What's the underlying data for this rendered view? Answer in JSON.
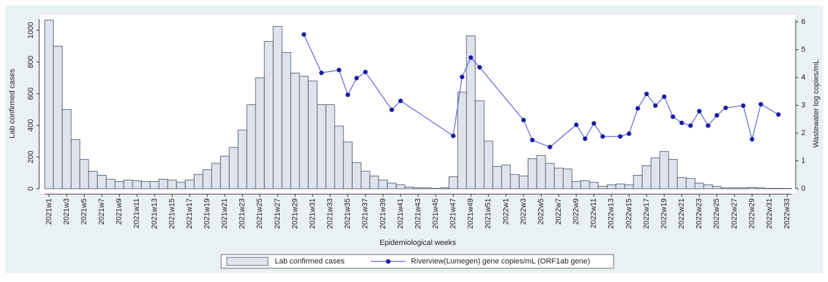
{
  "chart_data": {
    "type": "bar-line",
    "x_label": "Epidemiological weeks",
    "y_label": "Lab confirmed cases",
    "y2_label": "Wastewater log copies/mL",
    "categories": [
      "2021w1",
      null,
      "2021w3",
      null,
      "2021w5",
      null,
      "2021w7",
      null,
      "2021w9",
      null,
      "2021w11",
      null,
      "2021w13",
      null,
      "2021w15",
      null,
      "2021w17",
      null,
      "2021w19",
      null,
      "2021w21",
      null,
      "2021w23",
      null,
      "2021w25",
      null,
      "2021w27",
      null,
      "2021w29",
      null,
      "2021w31",
      null,
      "2021w33",
      null,
      "2021w35",
      null,
      "2021w37",
      null,
      "2021w39",
      null,
      "2021w41",
      null,
      "2021w43",
      null,
      "2021w45",
      null,
      "2021w47",
      null,
      "2021w49",
      null,
      "2021w51",
      null,
      "2022w1",
      null,
      "2022w3",
      null,
      "2022w5",
      null,
      "2022w7",
      null,
      "2022w9",
      null,
      "2022w11",
      null,
      "2022w13",
      null,
      "2022w15",
      null,
      "2022w17",
      null,
      "2022w19",
      null,
      "2022w21",
      null,
      "2022w23",
      null,
      "2022w25",
      null,
      "2022w27",
      null,
      "2022w29",
      null,
      "2022w31",
      null,
      "2022w33"
    ],
    "series": [
      {
        "name": "Lab confirmed cases",
        "type": "bar",
        "color": "#dfe4ec",
        "stroke": "#3d4a5e",
        "values": [
          1065,
          900,
          500,
          310,
          185,
          110,
          85,
          60,
          45,
          55,
          50,
          45,
          45,
          60,
          55,
          40,
          55,
          90,
          120,
          160,
          205,
          260,
          370,
          530,
          700,
          930,
          1025,
          860,
          730,
          710,
          680,
          530,
          530,
          395,
          295,
          165,
          110,
          80,
          55,
          35,
          25,
          10,
          5,
          5,
          2,
          5,
          75,
          610,
          965,
          555,
          300,
          140,
          150,
          90,
          80,
          190,
          210,
          160,
          130,
          125,
          45,
          50,
          40,
          15,
          25,
          30,
          25,
          85,
          145,
          195,
          235,
          185,
          70,
          65,
          35,
          25,
          15,
          5,
          5,
          5,
          8,
          5,
          2,
          2,
          2
        ]
      },
      {
        "name": "Riverview(Lumegen) gene copies/mL (ORF1ab gene)",
        "type": "line",
        "axis": "y2",
        "color": "#5b60d6",
        "marker_color": "#1c1ca6",
        "values": [
          null,
          null,
          null,
          null,
          null,
          null,
          null,
          null,
          null,
          null,
          null,
          null,
          null,
          null,
          null,
          null,
          null,
          null,
          null,
          null,
          null,
          null,
          null,
          null,
          null,
          null,
          null,
          null,
          null,
          5.55,
          null,
          4.17,
          null,
          4.27,
          3.38,
          3.98,
          4.2,
          null,
          null,
          2.84,
          3.16,
          null,
          null,
          null,
          null,
          null,
          1.9,
          4.02,
          4.72,
          4.37,
          null,
          null,
          null,
          null,
          2.47,
          1.75,
          null,
          1.5,
          null,
          null,
          2.3,
          1.8,
          2.35,
          1.88,
          null,
          1.88,
          1.98,
          2.89,
          3.41,
          2.99,
          3.31,
          2.59,
          2.37,
          2.27,
          2.79,
          2.27,
          2.64,
          2.91,
          null,
          2.99,
          1.78,
          3.04,
          null,
          2.67,
          null
        ]
      }
    ],
    "ylim": [
      0,
      1070
    ],
    "yticks": [
      0,
      200,
      400,
      600,
      800,
      1000
    ],
    "y2lim": [
      0,
      6.1
    ],
    "y2ticks": [
      0,
      1,
      2,
      3,
      4,
      5,
      6
    ],
    "legend": "bottom"
  }
}
